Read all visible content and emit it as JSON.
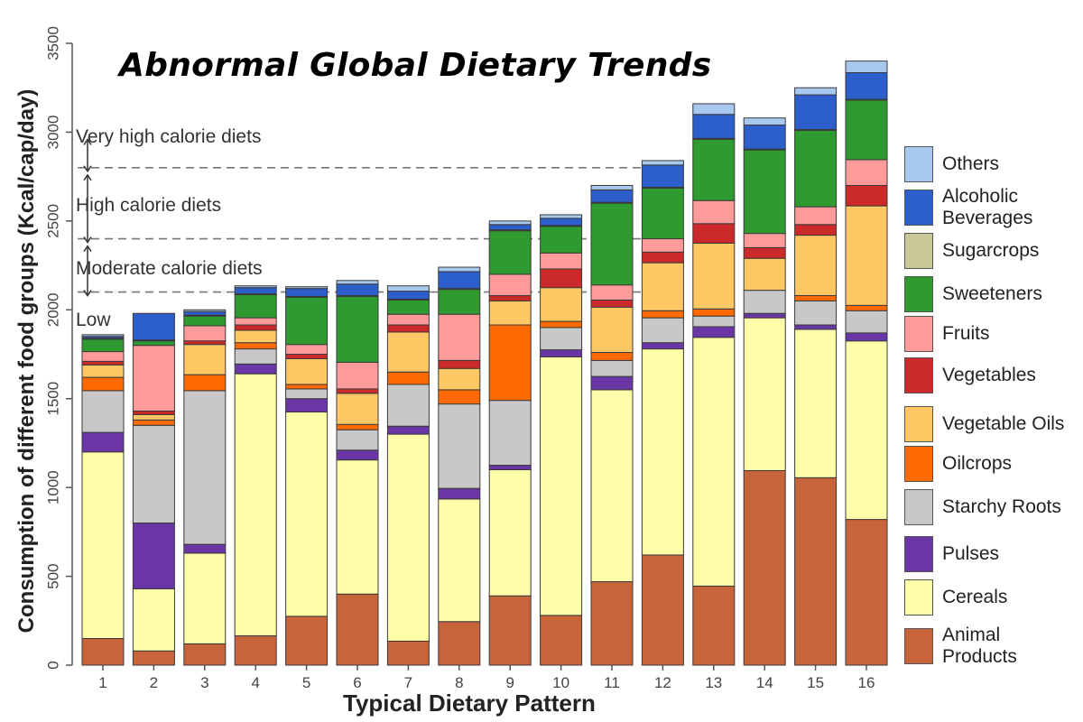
{
  "chart_data": {
    "type": "bar",
    "stacked": true,
    "title": "Abnormal Global Dietary Trends",
    "xlabel": "Typical Dietary Pattern",
    "ylabel": "Consumption of different food groups (Kcal/cap/day)",
    "ylim": [
      0,
      3500
    ],
    "yticks": [
      0,
      500,
      1000,
      1500,
      2000,
      2500,
      3000,
      3500
    ],
    "categories": [
      "1",
      "2",
      "3",
      "4",
      "5",
      "6",
      "7",
      "8",
      "9",
      "10",
      "11",
      "12",
      "13",
      "14",
      "15",
      "16"
    ],
    "threshold_lines": [
      2800,
      2400,
      2100
    ],
    "zones": [
      {
        "label": "Very high calorie diets",
        "arrow_from": 2800,
        "arrow_to": 3000
      },
      {
        "label": "High calorie diets",
        "arrow_from": 2400,
        "arrow_to": 2800
      },
      {
        "label": "Moderate calorie diets",
        "arrow_from": 2100,
        "arrow_to": 2400
      },
      {
        "label": "Low"
      }
    ],
    "series": [
      {
        "name": "Animal Products",
        "color": "#c8643a",
        "values": [
          150,
          80,
          120,
          165,
          275,
          400,
          135,
          245,
          390,
          280,
          470,
          620,
          445,
          1095,
          1055,
          820
        ]
      },
      {
        "name": "Cereals",
        "color": "#ffffaa",
        "values": [
          1050,
          350,
          510,
          1475,
          1150,
          755,
          1165,
          690,
          710,
          1455,
          1080,
          1160,
          1400,
          860,
          835,
          1005
        ]
      },
      {
        "name": "Pulses",
        "color": "#6a36a6",
        "values": [
          110,
          370,
          50,
          55,
          75,
          55,
          45,
          60,
          25,
          40,
          75,
          35,
          60,
          25,
          25,
          45
        ]
      },
      {
        "name": "Starchy Roots",
        "color": "#c8c8c8",
        "values": [
          235,
          550,
          865,
          85,
          55,
          115,
          235,
          475,
          365,
          125,
          90,
          140,
          60,
          130,
          135,
          125
        ]
      },
      {
        "name": "Oilcrops",
        "color": "#ff6a00",
        "values": [
          75,
          30,
          90,
          35,
          25,
          30,
          70,
          80,
          425,
          35,
          45,
          40,
          40,
          0,
          30,
          30
        ]
      },
      {
        "name": "Vegetable Oils",
        "color": "#ffc864",
        "values": [
          70,
          30,
          170,
          70,
          145,
          175,
          225,
          120,
          135,
          190,
          255,
          270,
          370,
          180,
          340,
          560
        ]
      },
      {
        "name": "Vegetables",
        "color": "#cc2a2a",
        "values": [
          20,
          20,
          20,
          30,
          25,
          25,
          40,
          45,
          30,
          105,
          40,
          60,
          110,
          60,
          60,
          115
        ]
      },
      {
        "name": "Fruits",
        "color": "#ff9a9a",
        "values": [
          55,
          370,
          85,
          40,
          55,
          150,
          60,
          260,
          120,
          90,
          85,
          75,
          130,
          80,
          100,
          145
        ]
      },
      {
        "name": "Sweeteners",
        "color": "#2f9a30",
        "values": [
          70,
          25,
          55,
          130,
          265,
          370,
          80,
          140,
          245,
          150,
          460,
          285,
          345,
          470,
          430,
          335
        ]
      },
      {
        "name": "Sugarcrops",
        "color": "#c8c896",
        "values": [
          5,
          5,
          5,
          5,
          5,
          5,
          5,
          5,
          5,
          5,
          5,
          5,
          5,
          5,
          5,
          5
        ]
      },
      {
        "name": "Alcoholic Beverages",
        "color": "#2c5fcc",
        "values": [
          10,
          150,
          20,
          35,
          45,
          65,
          45,
          95,
          30,
          40,
          70,
          125,
          135,
          135,
          195,
          150
        ]
      },
      {
        "name": "Others",
        "color": "#a8c8ee",
        "values": [
          10,
          0,
          10,
          10,
          10,
          20,
          30,
          25,
          20,
          20,
          25,
          25,
          60,
          40,
          40,
          65
        ]
      }
    ],
    "legend": [
      {
        "label": "Others",
        "color": "#a8c8ee"
      },
      {
        "label": "Alcoholic Beverages",
        "color": "#2c5fcc"
      },
      {
        "label": "Sugarcrops",
        "color": "#c8c896"
      },
      {
        "label": "Sweeteners",
        "color": "#2f9a30"
      },
      {
        "label": "Fruits",
        "color": "#ff9a9a"
      },
      {
        "label": "Vegetables",
        "color": "#cc2a2a"
      },
      {
        "label": "Vegetable Oils",
        "color": "#ffc864"
      },
      {
        "label": "Oilcrops",
        "color": "#ff6a00"
      },
      {
        "label": "Starchy Roots",
        "color": "#c8c8c8"
      },
      {
        "label": "Pulses",
        "color": "#6a36a6"
      },
      {
        "label": "Cereals",
        "color": "#ffffaa"
      },
      {
        "label": "Animal Products",
        "color": "#c8643a"
      }
    ]
  }
}
